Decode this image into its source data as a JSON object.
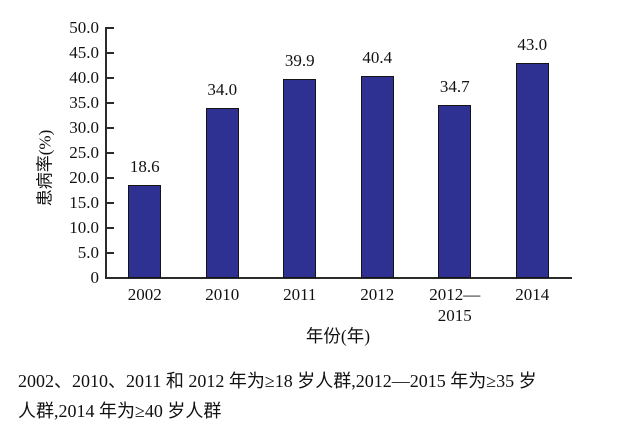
{
  "chart_data": {
    "type": "bar",
    "title": "",
    "xlabel": "年份(年)",
    "ylabel": "患病率(%)",
    "categories": [
      "2002",
      "2010",
      "2011",
      "2012",
      "2012—2015",
      "2014"
    ],
    "values": [
      18.6,
      34.0,
      39.9,
      40.4,
      34.7,
      43.0
    ],
    "value_labels": [
      "18.6",
      "34.0",
      "39.9",
      "40.4",
      "34.7",
      "43.0"
    ],
    "x_tick_lines": [
      [
        "2002"
      ],
      [
        "2010"
      ],
      [
        "2011"
      ],
      [
        "2012"
      ],
      [
        "2012—",
        "2015"
      ],
      [
        "2014"
      ]
    ],
    "ylim": [
      0,
      50
    ],
    "y_ticks": [
      0,
      5,
      10,
      15,
      20,
      25,
      30,
      35,
      40,
      45,
      50
    ],
    "y_tick_labels": [
      "0",
      "5.0",
      "10.0",
      "15.0",
      "20.0",
      "25.0",
      "30.0",
      "35.0",
      "40.0",
      "45.0",
      "50.0"
    ],
    "grid": false,
    "legend": "none",
    "bar_color": "#2e3192",
    "bar_border_color": "#141414",
    "axis_color": "#2b2b2b"
  },
  "note": {
    "lines": [
      "2002、2010、2011 和 2012 年为≥18 岁人群,2012—2015 年为≥35 岁",
      "人群,2014 年为≥40 岁人群"
    ]
  }
}
